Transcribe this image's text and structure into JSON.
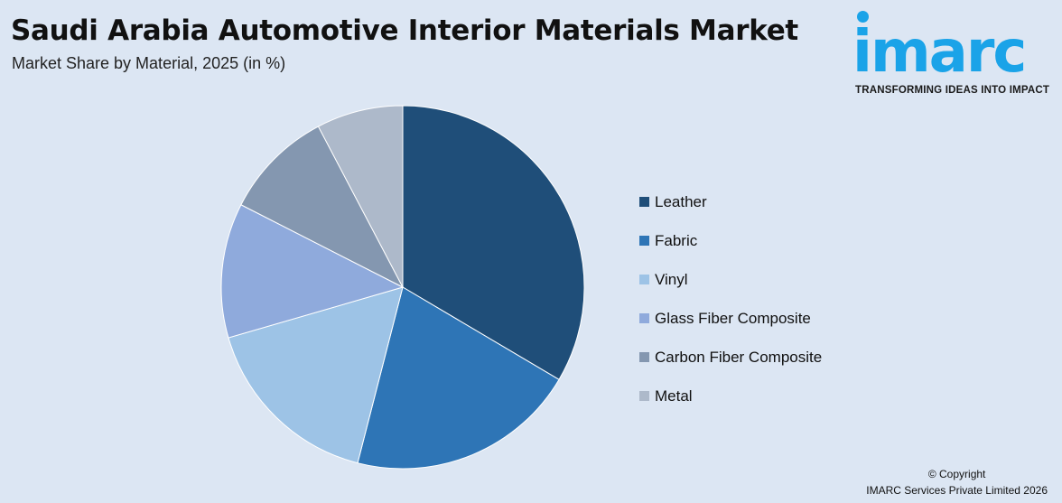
{
  "header": {
    "title": "Saudi Arabia Automotive Interior Materials Market",
    "subtitle": "Market Share by Material, 2025 (in %)"
  },
  "logo": {
    "word": "imarc",
    "tagline": "TRANSFORMING IDEAS INTO IMPACT",
    "color": "#1aa3e8"
  },
  "footer": {
    "line1": "© Copyright",
    "line2": "IMARC Services Private Limited 2026"
  },
  "chart_data": {
    "type": "pie",
    "title": "Saudi Arabia Automotive Interior Materials Market",
    "subtitle": "Market Share by Material, 2025 (in %)",
    "legend_position": "right",
    "start": "top, clockwise",
    "slices": [
      {
        "label": "Leather",
        "value": 33.5,
        "color": "#1f4e79"
      },
      {
        "label": "Fabric",
        "value": 20.5,
        "color": "#2e75b6"
      },
      {
        "label": "Vinyl",
        "value": 16.5,
        "color": "#9dc3e6"
      },
      {
        "label": "Glass Fiber Composite",
        "value": 12.0,
        "color": "#8faadc"
      },
      {
        "label": "Carbon Fiber Composite",
        "value": 9.8,
        "color": "#8497b0"
      },
      {
        "label": "Metal",
        "value": 7.7,
        "color": "#adb9ca"
      }
    ]
  }
}
